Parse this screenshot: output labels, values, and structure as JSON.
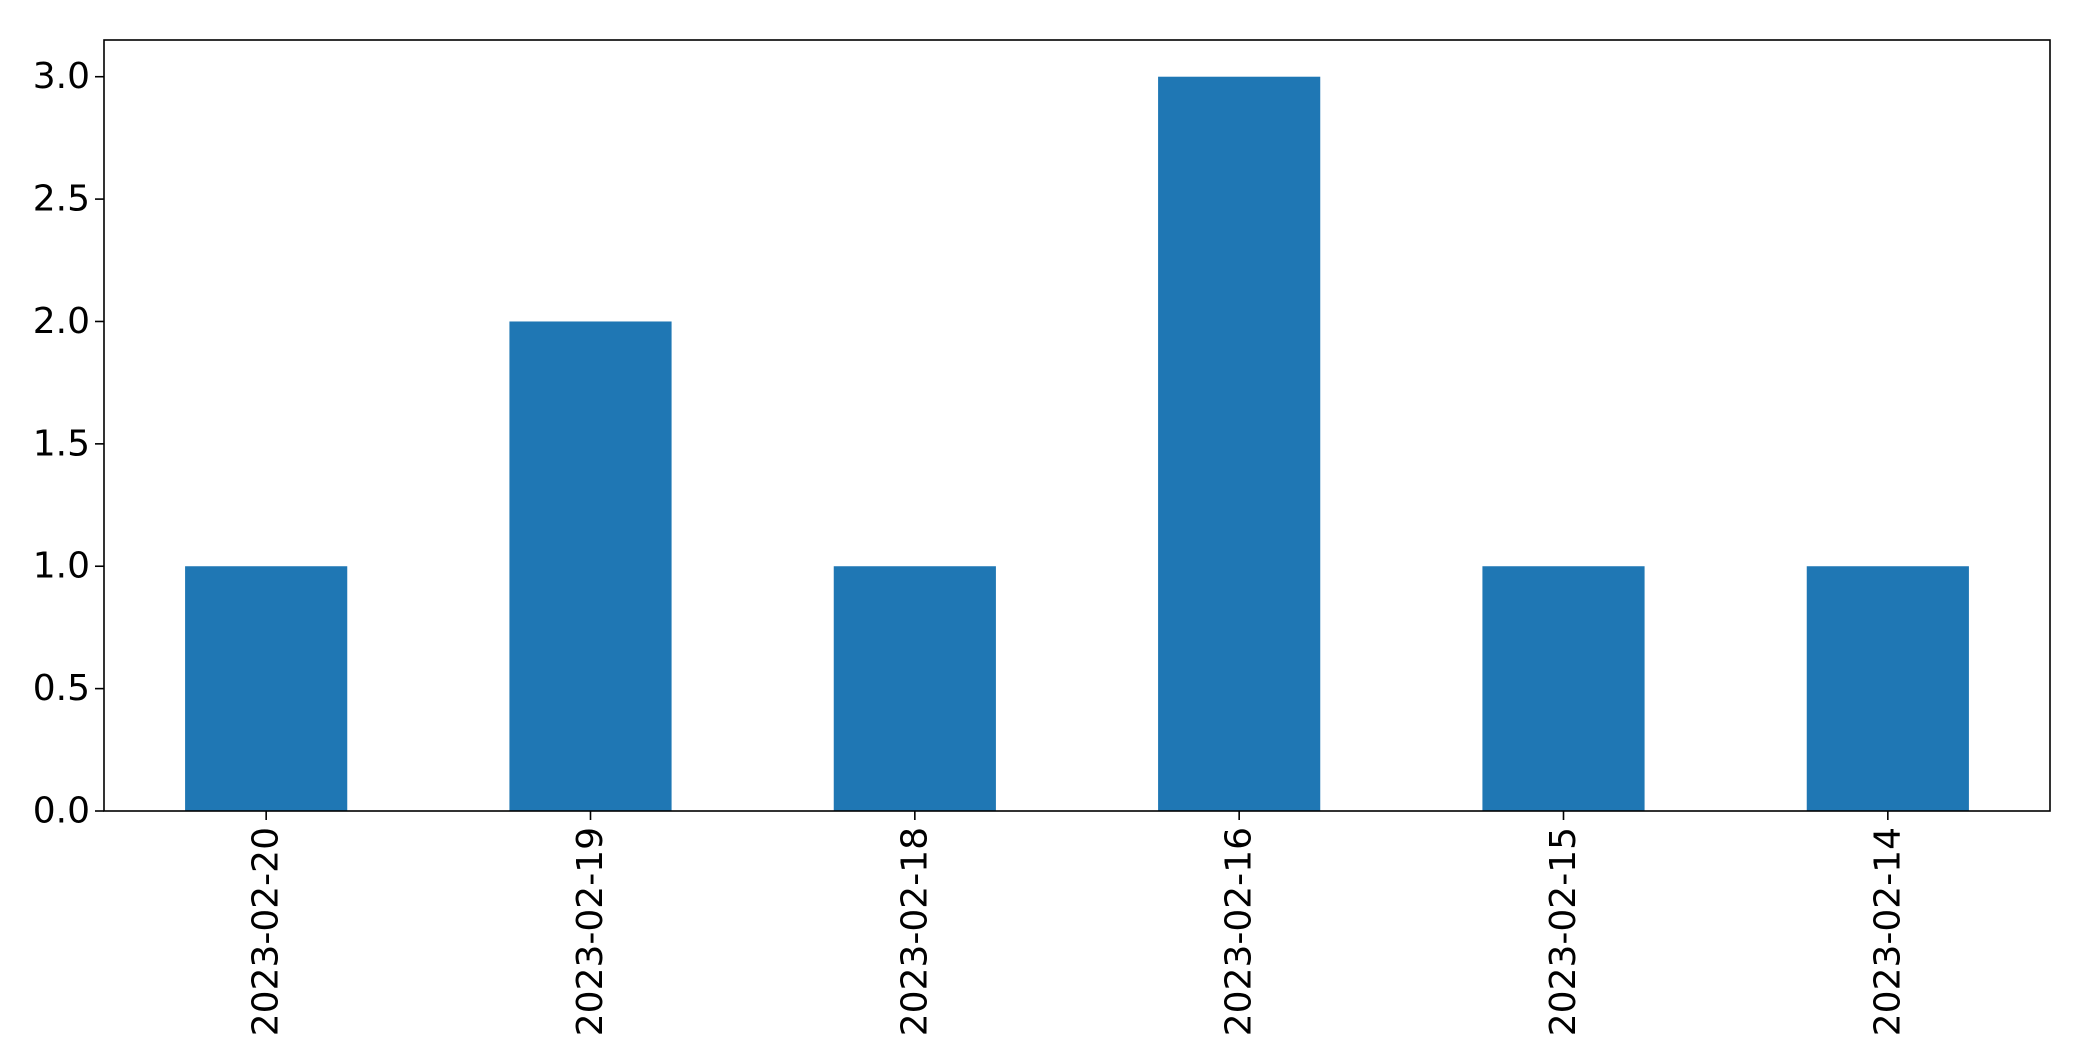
{
  "chart_data": {
    "type": "bar",
    "categories": [
      "2023-02-20",
      "2023-02-19",
      "2023-02-18",
      "2023-02-16",
      "2023-02-15",
      "2023-02-14"
    ],
    "values": [
      1,
      2,
      1,
      3,
      1,
      1
    ],
    "yticks": [
      "0.0",
      "0.5",
      "1.0",
      "1.5",
      "2.0",
      "2.5",
      "3.0"
    ],
    "ylim": [
      0,
      3.15
    ],
    "bar_color": "#1f77b4",
    "grid": false,
    "title": "",
    "xlabel": "",
    "ylabel": ""
  }
}
